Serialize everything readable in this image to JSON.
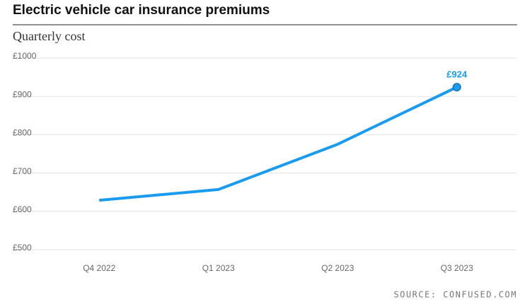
{
  "chart_data": {
    "type": "line",
    "title": "Electric vehicle car insurance premiums",
    "subtitle": "Quarterly cost",
    "source": "SOURCE: CONFUSED.COM",
    "categories": [
      "Q4 2022",
      "Q1 2023",
      "Q2 2023",
      "Q3 2023"
    ],
    "series": [
      {
        "name": "Quarterly cost",
        "color": "#1a9bf0",
        "values": [
          629,
          657,
          775,
          924
        ],
        "value_labels": [
          null,
          null,
          null,
          "£924"
        ]
      }
    ],
    "ylim": [
      500,
      1000
    ],
    "yticks": [
      {
        "value": 500,
        "label": "£500"
      },
      {
        "value": 600,
        "label": "£600"
      },
      {
        "value": 700,
        "label": "£700"
      },
      {
        "value": 800,
        "label": "£800"
      },
      {
        "value": 900,
        "label": "£900"
      },
      {
        "value": 1000,
        "label": "£1000"
      }
    ],
    "grid": true
  }
}
